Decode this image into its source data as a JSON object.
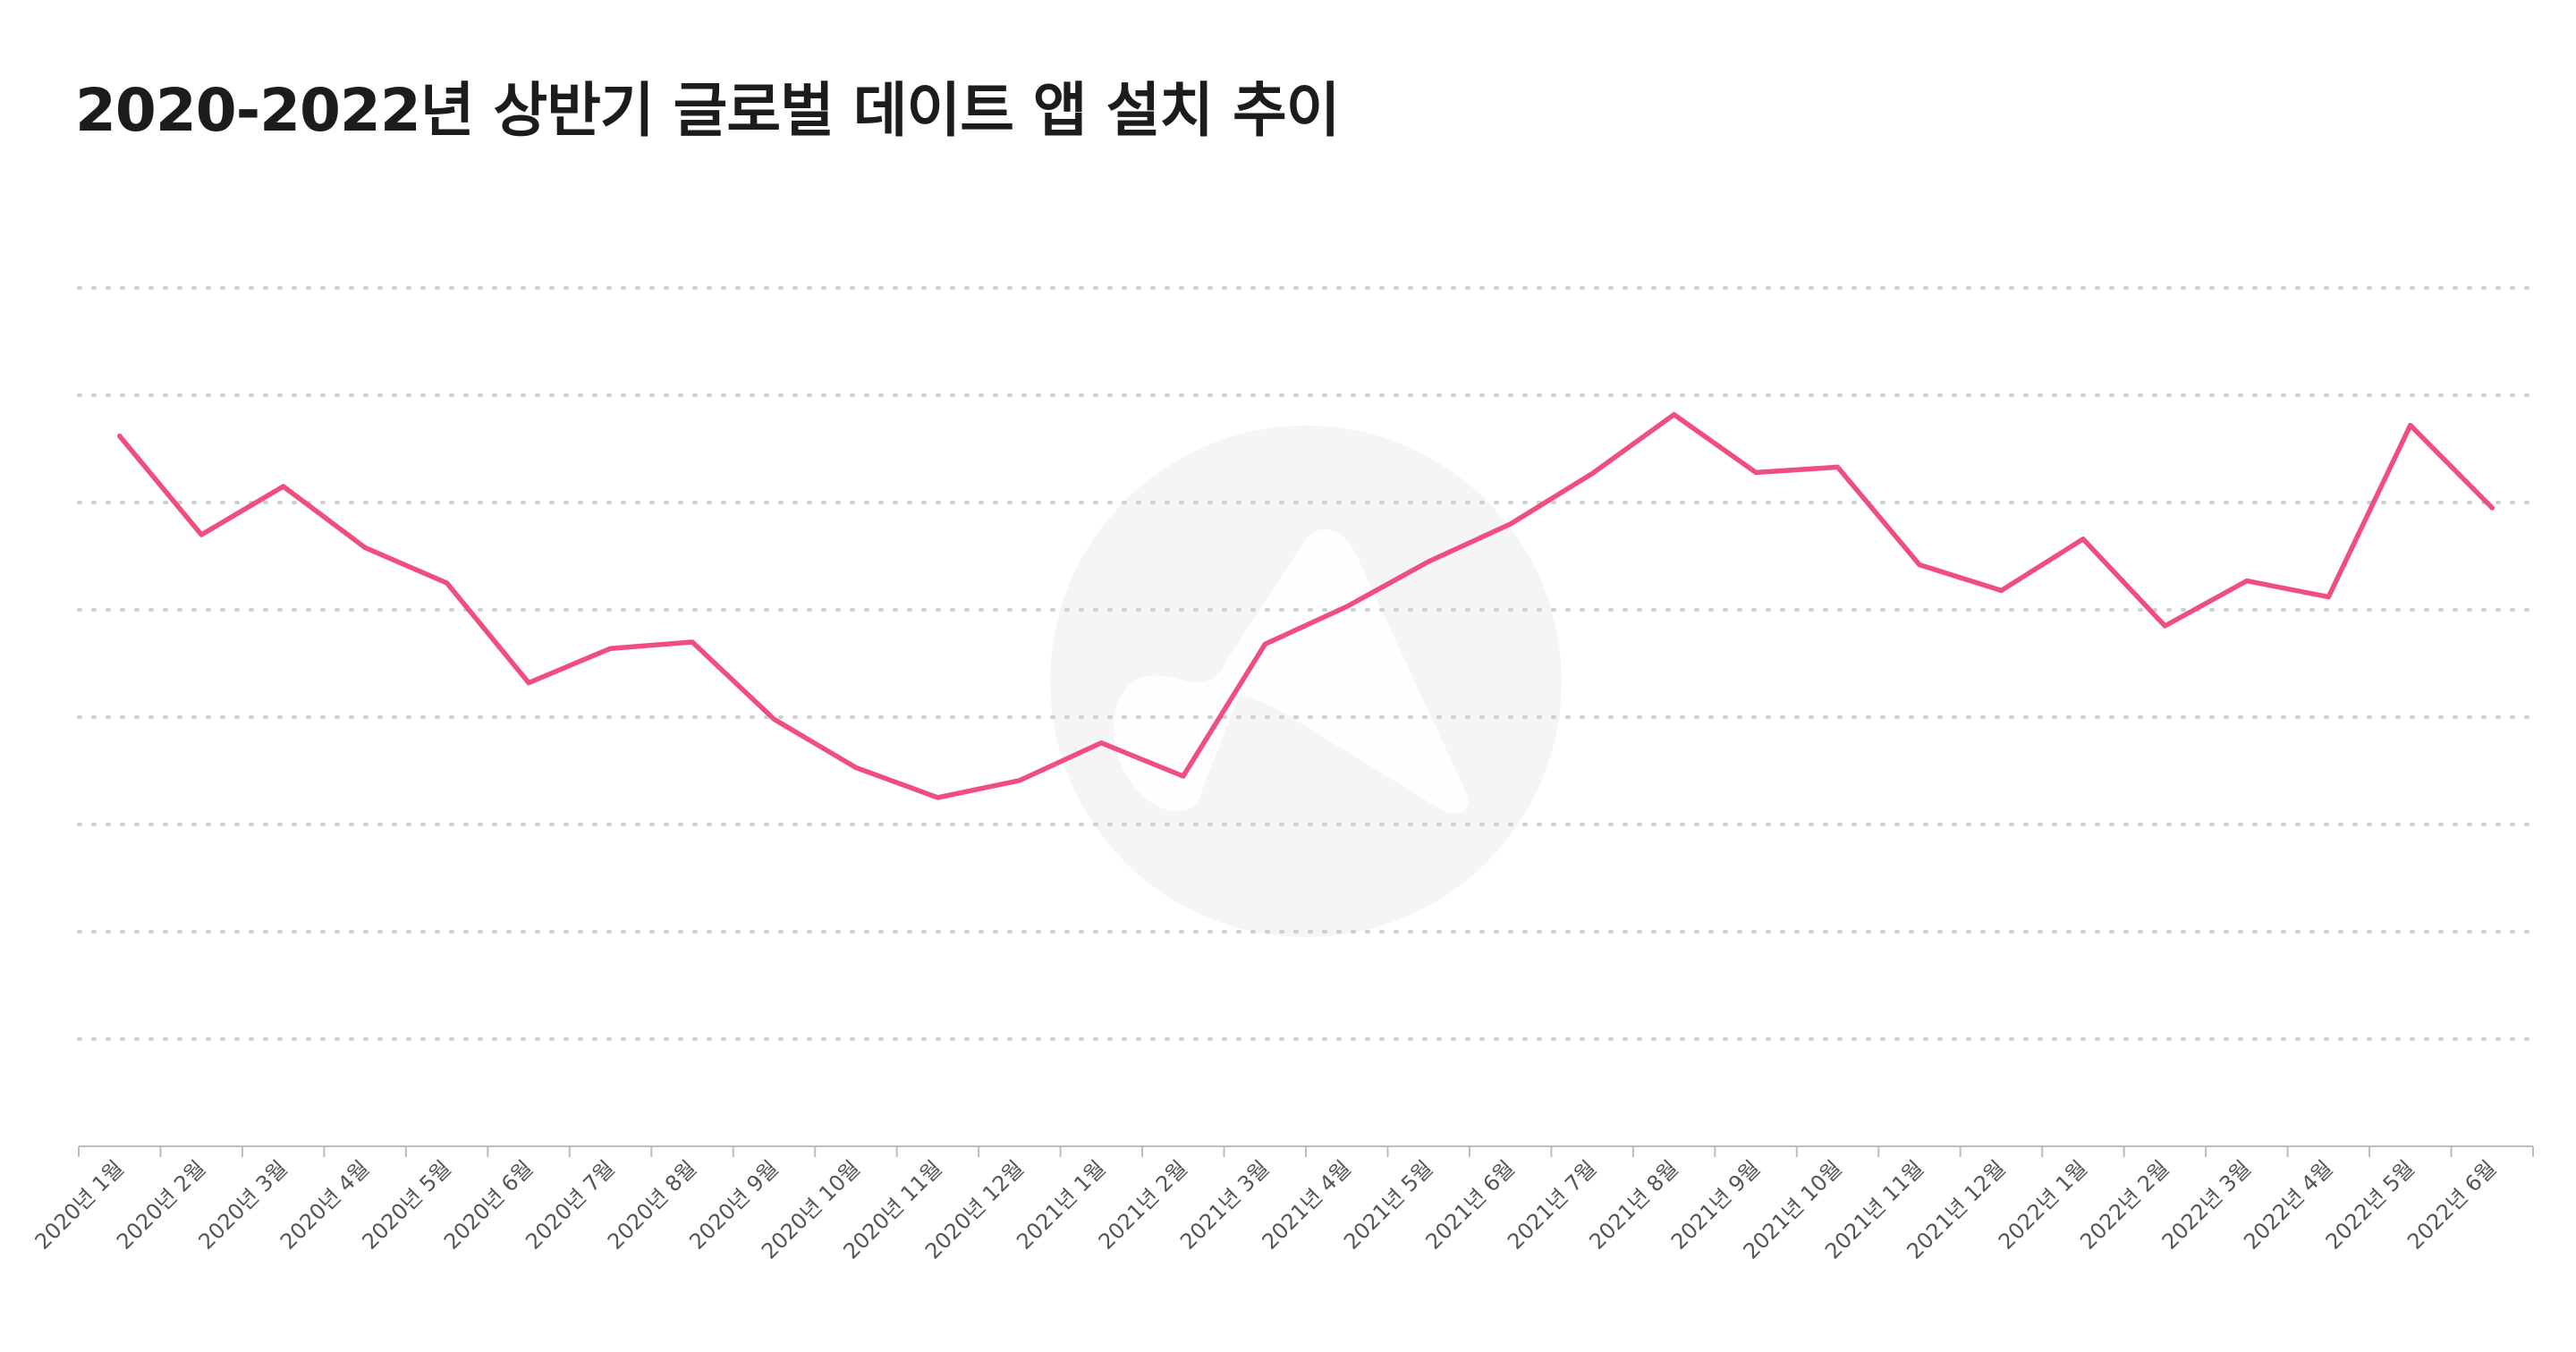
{
  "chart_data": {
    "type": "line",
    "title": "2020-2022년 상반기 글로벌 데이트 앱 설치 추이",
    "xlabel": "",
    "ylabel": "",
    "grid": true,
    "y_axis_labels_shown": false,
    "ylim": [
      0,
      8
    ],
    "categories": [
      "2020년 1월",
      "2020년 2월",
      "2020년 3월",
      "2020년 4월",
      "2020년 5월",
      "2020년 6월",
      "2020년 7월",
      "2020년 8월",
      "2020년 9월",
      "2020년 10월",
      "2020년 11월",
      "2020년 12월",
      "2021년 1월",
      "2021년 2월",
      "2021년 3월",
      "2021년 4월",
      "2021년 5월",
      "2021년 6월",
      "2021년 7월",
      "2021년 8월",
      "2021년 9월",
      "2021년 10월",
      "2021년 11월",
      "2021년 12월",
      "2022년 1월",
      "2022년 2월",
      "2022년 3월",
      "2022년 4월",
      "2022년 5월",
      "2022년 6월"
    ],
    "series": [
      {
        "name": "글로벌 데이트 앱 설치",
        "color": "#f04e7e",
        "values": [
          6.62,
          5.7,
          6.15,
          5.58,
          5.25,
          4.32,
          4.64,
          4.7,
          3.98,
          3.53,
          3.25,
          3.41,
          3.76,
          3.45,
          4.68,
          5.03,
          5.45,
          5.8,
          6.27,
          6.82,
          6.28,
          6.33,
          5.42,
          5.18,
          5.66,
          4.85,
          5.27,
          5.12,
          6.72,
          5.95
        ]
      }
    ]
  },
  "colors": {
    "line": "#f04e7e",
    "grid": "#cfcfcf",
    "axis": "#bdbdbd",
    "watermark": "#f5f5f5",
    "title": "#1c1c1c",
    "tick_label": "#555555"
  },
  "watermark": {
    "icon": "logo-watermark-icon"
  }
}
